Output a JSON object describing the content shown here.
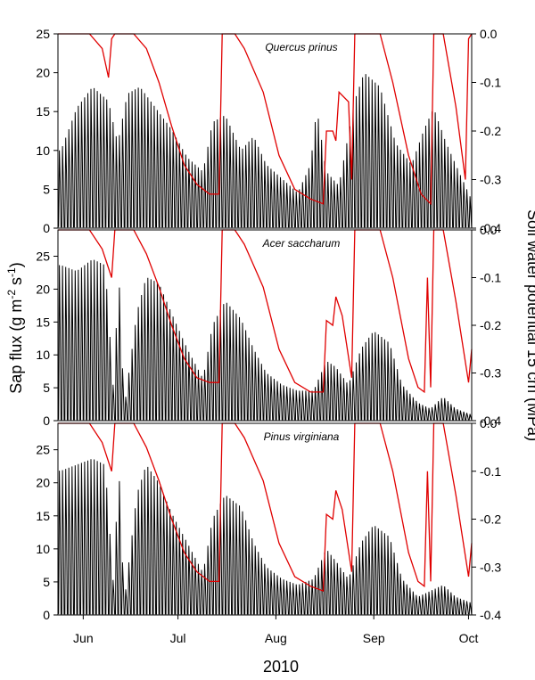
{
  "chart_data": {
    "type": "line",
    "xlabel": "2010",
    "ylabel_left": "Sap flux (g m",
    "ylabel_left_sup1": "-2",
    "ylabel_left_mid": " s",
    "ylabel_left_sup2": "-1",
    "ylabel_left_end": ")",
    "ylabel_right": "Soil water potential 15 cm (MPa)",
    "x_ticks": [
      "Jun",
      "Jul",
      "Aug",
      "Sep",
      "Oct"
    ],
    "x_tick_days": [
      152,
      182,
      213,
      244,
      274
    ],
    "xlim": [
      144,
      275
    ],
    "colors": {
      "sap_flux": "#000000",
      "soil_water": "#e00000"
    },
    "panels": [
      {
        "name": "Quercus prinus",
        "ylim_left": [
          0,
          25
        ],
        "yticks_left": [
          "0",
          "5",
          "10",
          "15",
          "20",
          "25"
        ],
        "ylim_right": [
          -0.4,
          0.0
        ],
        "yticks_right": [
          "-0.4",
          "-0.3",
          "-0.2",
          "-0.1",
          "0.0"
        ],
        "sap_peak_envelope": [
          {
            "day": 145,
            "peak": 11
          },
          {
            "day": 150,
            "peak": 17
          },
          {
            "day": 155,
            "peak": 20
          },
          {
            "day": 160,
            "peak": 18
          },
          {
            "day": 163,
            "peak": 12
          },
          {
            "day": 166,
            "peak": 19
          },
          {
            "day": 170,
            "peak": 20
          },
          {
            "day": 175,
            "peak": 17
          },
          {
            "day": 180,
            "peak": 14
          },
          {
            "day": 185,
            "peak": 10
          },
          {
            "day": 190,
            "peak": 8
          },
          {
            "day": 193,
            "peak": 15
          },
          {
            "day": 197,
            "peak": 16
          },
          {
            "day": 202,
            "peak": 11
          },
          {
            "day": 206,
            "peak": 13
          },
          {
            "day": 210,
            "peak": 9
          },
          {
            "day": 215,
            "peak": 7
          },
          {
            "day": 220,
            "peak": 5
          },
          {
            "day": 224,
            "peak": 9
          },
          {
            "day": 226,
            "peak": 17
          },
          {
            "day": 229,
            "peak": 8
          },
          {
            "day": 233,
            "peak": 6
          },
          {
            "day": 238,
            "peak": 18
          },
          {
            "day": 241,
            "peak": 22
          },
          {
            "day": 246,
            "peak": 20
          },
          {
            "day": 251,
            "peak": 12
          },
          {
            "day": 256,
            "peak": 9
          },
          {
            "day": 260,
            "peak": 14
          },
          {
            "day": 263,
            "peak": 17
          },
          {
            "day": 267,
            "peak": 12
          },
          {
            "day": 272,
            "peak": 7
          },
          {
            "day": 275,
            "peak": 4
          }
        ],
        "soil_water_potential": [
          {
            "day": 144,
            "v": 0.0
          },
          {
            "day": 154,
            "v": 0.0
          },
          {
            "day": 158,
            "v": -0.03
          },
          {
            "day": 160,
            "v": -0.09
          },
          {
            "day": 161,
            "v": -0.01
          },
          {
            "day": 162,
            "v": 0.0
          },
          {
            "day": 168,
            "v": 0.0
          },
          {
            "day": 172,
            "v": -0.03
          },
          {
            "day": 176,
            "v": -0.1
          },
          {
            "day": 180,
            "v": -0.19
          },
          {
            "day": 184,
            "v": -0.27
          },
          {
            "day": 188,
            "v": -0.31
          },
          {
            "day": 192,
            "v": -0.33
          },
          {
            "day": 195,
            "v": -0.33
          },
          {
            "day": 196,
            "v": 0.0
          },
          {
            "day": 200,
            "v": 0.0
          },
          {
            "day": 203,
            "v": -0.03
          },
          {
            "day": 205,
            "v": -0.06
          },
          {
            "day": 209,
            "v": -0.12
          },
          {
            "day": 214,
            "v": -0.25
          },
          {
            "day": 219,
            "v": -0.32
          },
          {
            "day": 224,
            "v": -0.34
          },
          {
            "day": 228,
            "v": -0.35
          },
          {
            "day": 229,
            "v": -0.2
          },
          {
            "day": 231,
            "v": -0.2
          },
          {
            "day": 232,
            "v": -0.22
          },
          {
            "day": 233,
            "v": -0.12
          },
          {
            "day": 236,
            "v": -0.14
          },
          {
            "day": 237,
            "v": -0.3
          },
          {
            "day": 238,
            "v": 0.0
          },
          {
            "day": 246,
            "v": 0.0
          },
          {
            "day": 250,
            "v": -0.1
          },
          {
            "day": 255,
            "v": -0.25
          },
          {
            "day": 259,
            "v": -0.33
          },
          {
            "day": 262,
            "v": -0.35
          },
          {
            "day": 263,
            "v": 0.0
          },
          {
            "day": 266,
            "v": 0.0
          },
          {
            "day": 270,
            "v": -0.15
          },
          {
            "day": 273,
            "v": -0.3
          },
          {
            "day": 274,
            "v": -0.01
          },
          {
            "day": 275,
            "v": 0.0
          }
        ]
      },
      {
        "name": "Acer saccharum",
        "ylim_left": [
          0,
          29
        ],
        "yticks_left": [
          "0",
          "5",
          "10",
          "15",
          "20",
          "25"
        ],
        "ylim_right": [
          -0.4,
          0.0
        ],
        "yticks_right": [
          "-0.4",
          "-0.3",
          "-0.2",
          "-0.1",
          "0.0"
        ],
        "sap_peak_envelope": [
          {
            "day": 145,
            "peak": 26
          },
          {
            "day": 150,
            "peak": 25
          },
          {
            "day": 155,
            "peak": 27
          },
          {
            "day": 159,
            "peak": 26
          },
          {
            "day": 162,
            "peak": 2
          },
          {
            "day": 163,
            "peak": 29
          },
          {
            "day": 165,
            "peak": 2
          },
          {
            "day": 169,
            "peak": 18
          },
          {
            "day": 172,
            "peak": 24
          },
          {
            "day": 176,
            "peak": 23
          },
          {
            "day": 180,
            "peak": 18
          },
          {
            "day": 185,
            "peak": 12
          },
          {
            "day": 190,
            "peak": 7
          },
          {
            "day": 193,
            "peak": 16
          },
          {
            "day": 197,
            "peak": 20
          },
          {
            "day": 202,
            "peak": 17
          },
          {
            "day": 206,
            "peak": 12
          },
          {
            "day": 210,
            "peak": 8
          },
          {
            "day": 215,
            "peak": 6
          },
          {
            "day": 220,
            "peak": 5
          },
          {
            "day": 225,
            "peak": 5
          },
          {
            "day": 229,
            "peak": 10
          },
          {
            "day": 232,
            "peak": 9
          },
          {
            "day": 236,
            "peak": 6
          },
          {
            "day": 240,
            "peak": 12
          },
          {
            "day": 244,
            "peak": 15
          },
          {
            "day": 249,
            "peak": 13
          },
          {
            "day": 253,
            "peak": 6
          },
          {
            "day": 258,
            "peak": 3
          },
          {
            "day": 262,
            "peak": 2
          },
          {
            "day": 266,
            "peak": 4
          },
          {
            "day": 270,
            "peak": 2
          },
          {
            "day": 275,
            "peak": 1
          }
        ],
        "soil_water_potential": [
          {
            "day": 144,
            "v": 0.0
          },
          {
            "day": 154,
            "v": 0.0
          },
          {
            "day": 158,
            "v": -0.04
          },
          {
            "day": 161,
            "v": -0.1
          },
          {
            "day": 162,
            "v": 0.0
          },
          {
            "day": 168,
            "v": 0.0
          },
          {
            "day": 172,
            "v": -0.05
          },
          {
            "day": 176,
            "v": -0.12
          },
          {
            "day": 180,
            "v": -0.2
          },
          {
            "day": 184,
            "v": -0.27
          },
          {
            "day": 188,
            "v": -0.31
          },
          {
            "day": 192,
            "v": -0.32
          },
          {
            "day": 195,
            "v": -0.32
          },
          {
            "day": 196,
            "v": 0.0
          },
          {
            "day": 200,
            "v": 0.0
          },
          {
            "day": 203,
            "v": -0.03
          },
          {
            "day": 205,
            "v": -0.06
          },
          {
            "day": 209,
            "v": -0.12
          },
          {
            "day": 214,
            "v": -0.25
          },
          {
            "day": 219,
            "v": -0.32
          },
          {
            "day": 224,
            "v": -0.34
          },
          {
            "day": 228,
            "v": -0.34
          },
          {
            "day": 229,
            "v": -0.19
          },
          {
            "day": 231,
            "v": -0.2
          },
          {
            "day": 232,
            "v": -0.14
          },
          {
            "day": 234,
            "v": -0.18
          },
          {
            "day": 237,
            "v": -0.31
          },
          {
            "day": 238,
            "v": 0.0
          },
          {
            "day": 246,
            "v": 0.0
          },
          {
            "day": 250,
            "v": -0.1
          },
          {
            "day": 255,
            "v": -0.27
          },
          {
            "day": 258,
            "v": -0.33
          },
          {
            "day": 260,
            "v": -0.34
          },
          {
            "day": 261,
            "v": -0.1
          },
          {
            "day": 262,
            "v": -0.33
          },
          {
            "day": 263,
            "v": 0.0
          },
          {
            "day": 266,
            "v": 0.0
          },
          {
            "day": 270,
            "v": -0.15
          },
          {
            "day": 274,
            "v": -0.32
          },
          {
            "day": 275,
            "v": -0.25
          }
        ]
      },
      {
        "name": "Pinus virginiana",
        "ylim_left": [
          0,
          29
        ],
        "yticks_left": [
          "0",
          "5",
          "10",
          "15",
          "20",
          "25"
        ],
        "ylim_right": [
          -0.4,
          0.0
        ],
        "yticks_right": [
          "-0.4",
          "-0.3",
          "-0.2",
          "-0.1",
          "0.0"
        ],
        "sap_peak_envelope": [
          {
            "day": 145,
            "peak": 24
          },
          {
            "day": 150,
            "peak": 25
          },
          {
            "day": 155,
            "peak": 26
          },
          {
            "day": 159,
            "peak": 25
          },
          {
            "day": 162,
            "peak": 2
          },
          {
            "day": 163,
            "peak": 29
          },
          {
            "day": 165,
            "peak": 2
          },
          {
            "day": 169,
            "peak": 20
          },
          {
            "day": 172,
            "peak": 25
          },
          {
            "day": 176,
            "peak": 22
          },
          {
            "day": 180,
            "peak": 17
          },
          {
            "day": 185,
            "peak": 12
          },
          {
            "day": 190,
            "peak": 7
          },
          {
            "day": 193,
            "peak": 16
          },
          {
            "day": 197,
            "peak": 20
          },
          {
            "day": 202,
            "peak": 18
          },
          {
            "day": 206,
            "peak": 12
          },
          {
            "day": 210,
            "peak": 8
          },
          {
            "day": 215,
            "peak": 6
          },
          {
            "day": 220,
            "peak": 5
          },
          {
            "day": 225,
            "peak": 6
          },
          {
            "day": 229,
            "peak": 11
          },
          {
            "day": 232,
            "peak": 9
          },
          {
            "day": 236,
            "peak": 6
          },
          {
            "day": 240,
            "peak": 12
          },
          {
            "day": 244,
            "peak": 15
          },
          {
            "day": 249,
            "peak": 13
          },
          {
            "day": 253,
            "peak": 6
          },
          {
            "day": 258,
            "peak": 3
          },
          {
            "day": 262,
            "peak": 4
          },
          {
            "day": 266,
            "peak": 5
          },
          {
            "day": 270,
            "peak": 3
          },
          {
            "day": 275,
            "peak": 2
          }
        ],
        "soil_water_potential": [
          {
            "day": 144,
            "v": 0.0
          },
          {
            "day": 154,
            "v": 0.0
          },
          {
            "day": 158,
            "v": -0.04
          },
          {
            "day": 161,
            "v": -0.1
          },
          {
            "day": 162,
            "v": 0.0
          },
          {
            "day": 168,
            "v": 0.0
          },
          {
            "day": 172,
            "v": -0.05
          },
          {
            "day": 176,
            "v": -0.12
          },
          {
            "day": 180,
            "v": -0.2
          },
          {
            "day": 184,
            "v": -0.27
          },
          {
            "day": 188,
            "v": -0.31
          },
          {
            "day": 192,
            "v": -0.33
          },
          {
            "day": 195,
            "v": -0.33
          },
          {
            "day": 196,
            "v": 0.0
          },
          {
            "day": 200,
            "v": 0.0
          },
          {
            "day": 203,
            "v": -0.03
          },
          {
            "day": 205,
            "v": -0.06
          },
          {
            "day": 209,
            "v": -0.12
          },
          {
            "day": 214,
            "v": -0.25
          },
          {
            "day": 219,
            "v": -0.32
          },
          {
            "day": 224,
            "v": -0.34
          },
          {
            "day": 228,
            "v": -0.35
          },
          {
            "day": 229,
            "v": -0.19
          },
          {
            "day": 231,
            "v": -0.2
          },
          {
            "day": 232,
            "v": -0.14
          },
          {
            "day": 234,
            "v": -0.18
          },
          {
            "day": 237,
            "v": -0.31
          },
          {
            "day": 238,
            "v": 0.0
          },
          {
            "day": 246,
            "v": 0.0
          },
          {
            "day": 250,
            "v": -0.1
          },
          {
            "day": 255,
            "v": -0.27
          },
          {
            "day": 258,
            "v": -0.33
          },
          {
            "day": 260,
            "v": -0.34
          },
          {
            "day": 261,
            "v": -0.1
          },
          {
            "day": 262,
            "v": -0.33
          },
          {
            "day": 263,
            "v": 0.0
          },
          {
            "day": 266,
            "v": 0.0
          },
          {
            "day": 270,
            "v": -0.15
          },
          {
            "day": 274,
            "v": -0.32
          },
          {
            "day": 275,
            "v": -0.25
          }
        ]
      }
    ]
  }
}
